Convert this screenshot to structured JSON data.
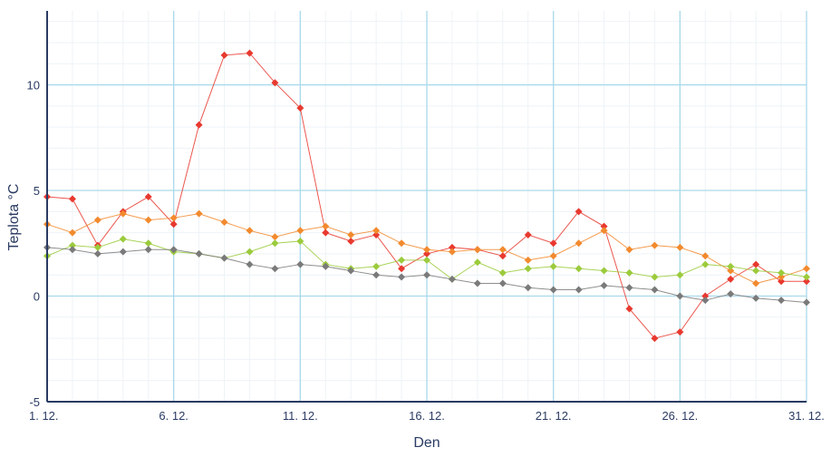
{
  "chart_data": {
    "type": "line",
    "xlabel": "Den",
    "ylabel": "Teplota °C",
    "xlim": [
      1,
      31
    ],
    "ylim": [
      -5,
      13.5
    ],
    "x_ticks": [
      {
        "x": 1,
        "label": "1. 12."
      },
      {
        "x": 6,
        "label": "6. 12."
      },
      {
        "x": 11,
        "label": "11. 12."
      },
      {
        "x": 16,
        "label": "16. 12."
      },
      {
        "x": 21,
        "label": "21. 12."
      },
      {
        "x": 26,
        "label": "26. 12."
      },
      {
        "x": 31,
        "label": "31. 12."
      }
    ],
    "y_ticks": [
      {
        "y": -5,
        "label": "-5"
      },
      {
        "y": 0,
        "label": "0"
      },
      {
        "y": 5,
        "label": "5"
      },
      {
        "y": 10,
        "label": "10"
      }
    ],
    "grid": true,
    "x": [
      1,
      2,
      3,
      4,
      5,
      6,
      7,
      8,
      9,
      10,
      11,
      12,
      13,
      14,
      15,
      16,
      17,
      18,
      19,
      20,
      21,
      22,
      23,
      24,
      25,
      26,
      27,
      28,
      29,
      30,
      31
    ],
    "series": [
      {
        "color": "#e8392f",
        "values": [
          4.7,
          4.6,
          2.4,
          4.0,
          4.7,
          3.4,
          8.1,
          11.4,
          11.5,
          10.1,
          8.9,
          3.0,
          2.6,
          2.9,
          1.3,
          2.0,
          2.3,
          2.2,
          1.9,
          2.9,
          2.5,
          4.0,
          3.3,
          -0.6,
          -2.0,
          -1.7,
          0.0,
          0.8,
          1.5,
          0.7,
          0.7
        ]
      },
      {
        "color": "#f28a2e",
        "values": [
          3.4,
          3.0,
          3.6,
          3.9,
          3.6,
          3.7,
          3.9,
          3.5,
          3.1,
          2.8,
          3.1,
          3.3,
          2.9,
          3.1,
          2.5,
          2.2,
          2.1,
          2.2,
          2.2,
          1.7,
          1.9,
          2.5,
          3.1,
          2.2,
          2.4,
          2.3,
          1.9,
          1.2,
          0.6,
          0.9,
          1.3
        ]
      },
      {
        "color": "#9bcb3c",
        "values": [
          1.9,
          2.4,
          2.3,
          2.7,
          2.5,
          2.1,
          2.0,
          1.8,
          2.1,
          2.5,
          2.6,
          1.5,
          1.3,
          1.4,
          1.7,
          1.7,
          0.8,
          1.6,
          1.1,
          1.3,
          1.4,
          1.3,
          1.2,
          1.1,
          0.9,
          1.0,
          1.5,
          1.4,
          1.2,
          1.1,
          0.9
        ]
      },
      {
        "color": "#7a7a7a",
        "values": [
          2.3,
          2.2,
          2.0,
          2.1,
          2.2,
          2.2,
          2.0,
          1.8,
          1.5,
          1.3,
          1.5,
          1.4,
          1.2,
          1.0,
          0.9,
          1.0,
          0.8,
          0.6,
          0.6,
          0.4,
          0.3,
          0.3,
          0.5,
          0.4,
          0.3,
          0.0,
          -0.2,
          0.1,
          -0.1,
          -0.2,
          -0.3
        ]
      }
    ]
  }
}
